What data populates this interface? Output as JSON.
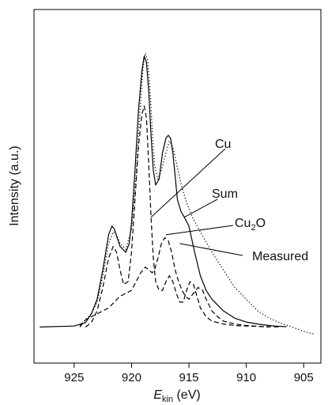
{
  "chart_data": {
    "type": "line",
    "title": "",
    "xlabel": {
      "italic": "E",
      "sub": "kin",
      "rest": " (eV)"
    },
    "ylabel": "Intensity (a.u.)",
    "x_reversed": true,
    "xlim": [
      928.5,
      903.5
    ],
    "ylim": [
      0,
      1.0
    ],
    "grid": false,
    "legend": "none (inline annotation labels)",
    "xticks": [
      925,
      920,
      915,
      910,
      905
    ],
    "xtick_labels": [
      "925",
      "920",
      "915",
      "910",
      "905"
    ],
    "series": [
      {
        "name": "Sum",
        "style": "solid",
        "x": [
          928,
          925,
          924,
          923.5,
          923,
          922.5,
          922,
          921.7,
          921.5,
          921,
          920.5,
          920.2,
          920,
          919.7,
          919.4,
          919.1,
          918.9,
          918.7,
          918.5,
          918.3,
          918.1,
          917.9,
          917.6,
          917.3,
          917,
          916.8,
          916.6,
          916.4,
          916.2,
          916,
          915.7,
          915.4,
          915,
          914.5,
          914,
          913.5,
          913,
          912.5,
          912,
          911,
          910,
          909,
          908,
          907.5,
          906.5
        ],
        "y": [
          0.045,
          0.048,
          0.06,
          0.09,
          0.14,
          0.24,
          0.36,
          0.39,
          0.38,
          0.32,
          0.3,
          0.33,
          0.4,
          0.58,
          0.78,
          0.92,
          0.97,
          0.95,
          0.85,
          0.7,
          0.58,
          0.53,
          0.55,
          0.64,
          0.69,
          0.7,
          0.69,
          0.64,
          0.56,
          0.48,
          0.44,
          0.42,
          0.39,
          0.3,
          0.22,
          0.17,
          0.14,
          0.12,
          0.1,
          0.075,
          0.062,
          0.055,
          0.05,
          0.048,
          0.046
        ]
      },
      {
        "name": "Measured",
        "style": "dotted",
        "x": [
          924.5,
          923.5,
          923,
          922.5,
          922,
          921.6,
          921.3,
          921,
          920.5,
          920,
          919.6,
          919.3,
          919,
          918.8,
          918.6,
          918.4,
          918.2,
          918,
          917.7,
          917.4,
          917,
          916.7,
          916.4,
          916,
          915.6,
          915.2,
          914.7,
          914,
          913,
          912,
          911,
          910,
          909,
          908,
          907,
          906,
          905,
          904
        ],
        "y": [
          0.05,
          0.09,
          0.13,
          0.22,
          0.33,
          0.37,
          0.36,
          0.33,
          0.31,
          0.38,
          0.56,
          0.76,
          0.93,
          0.98,
          0.96,
          0.86,
          0.72,
          0.6,
          0.55,
          0.58,
          0.64,
          0.68,
          0.66,
          0.59,
          0.52,
          0.47,
          0.42,
          0.37,
          0.3,
          0.24,
          0.18,
          0.14,
          0.1,
          0.075,
          0.058,
          0.045,
          0.03,
          0.02
        ]
      },
      {
        "name": "Cu",
        "style": "dashed",
        "x": [
          924,
          923.5,
          923,
          922.5,
          922,
          921.6,
          921.3,
          921,
          920.7,
          920.3,
          920,
          919.7,
          919.4,
          919.1,
          918.9,
          918.7,
          918.5,
          918.3,
          918.1,
          917.9,
          917.6,
          917.3,
          917,
          916.7,
          916.4,
          916.1,
          915.8,
          915.5,
          915.2,
          914.9,
          914.6,
          914.3,
          914,
          913.5,
          913,
          912,
          911,
          910,
          909,
          908,
          907
        ],
        "y": [
          0.045,
          0.06,
          0.1,
          0.18,
          0.28,
          0.32,
          0.3,
          0.24,
          0.19,
          0.2,
          0.3,
          0.48,
          0.66,
          0.77,
          0.8,
          0.76,
          0.6,
          0.42,
          0.28,
          0.2,
          0.17,
          0.17,
          0.2,
          0.22,
          0.2,
          0.16,
          0.13,
          0.13,
          0.17,
          0.2,
          0.19,
          0.15,
          0.11,
          0.08,
          0.065,
          0.055,
          0.05,
          0.048,
          0.047,
          0.046,
          0.045
        ]
      },
      {
        "name": "Cu2O",
        "style": "dashed",
        "x": [
          924.5,
          924,
          923.5,
          923,
          922.5,
          922,
          921.5,
          921,
          920.5,
          920,
          919.6,
          919.2,
          918.8,
          918.5,
          918.2,
          918,
          917.7,
          917.4,
          917.1,
          916.8,
          916.5,
          916.2,
          915.9,
          915.6,
          915.3,
          915,
          914.6,
          914.2,
          913.8,
          913.5,
          913,
          912.5,
          912,
          911,
          910,
          909,
          908
        ],
        "y": [
          0.045,
          0.07,
          0.08,
          0.09,
          0.1,
          0.11,
          0.13,
          0.15,
          0.16,
          0.17,
          0.2,
          0.23,
          0.25,
          0.24,
          0.23,
          0.24,
          0.28,
          0.33,
          0.35,
          0.34,
          0.3,
          0.24,
          0.2,
          0.17,
          0.15,
          0.14,
          0.16,
          0.18,
          0.17,
          0.14,
          0.1,
          0.08,
          0.065,
          0.055,
          0.05,
          0.047,
          0.045
        ]
      }
    ],
    "annotations": [
      {
        "label": "Cu",
        "series": "Cu",
        "x": 918.3,
        "y": 0.42
      },
      {
        "label": "Sum",
        "series": "Sum",
        "x": 915.4,
        "y": 0.42
      },
      {
        "label_main": "Cu",
        "label_sub": "2",
        "label_tail": "O",
        "series": "Cu2O",
        "x": 917.0,
        "y": 0.36
      },
      {
        "label": "Measured",
        "series": "Measured",
        "x": 915.8,
        "y": 0.33
      }
    ]
  }
}
